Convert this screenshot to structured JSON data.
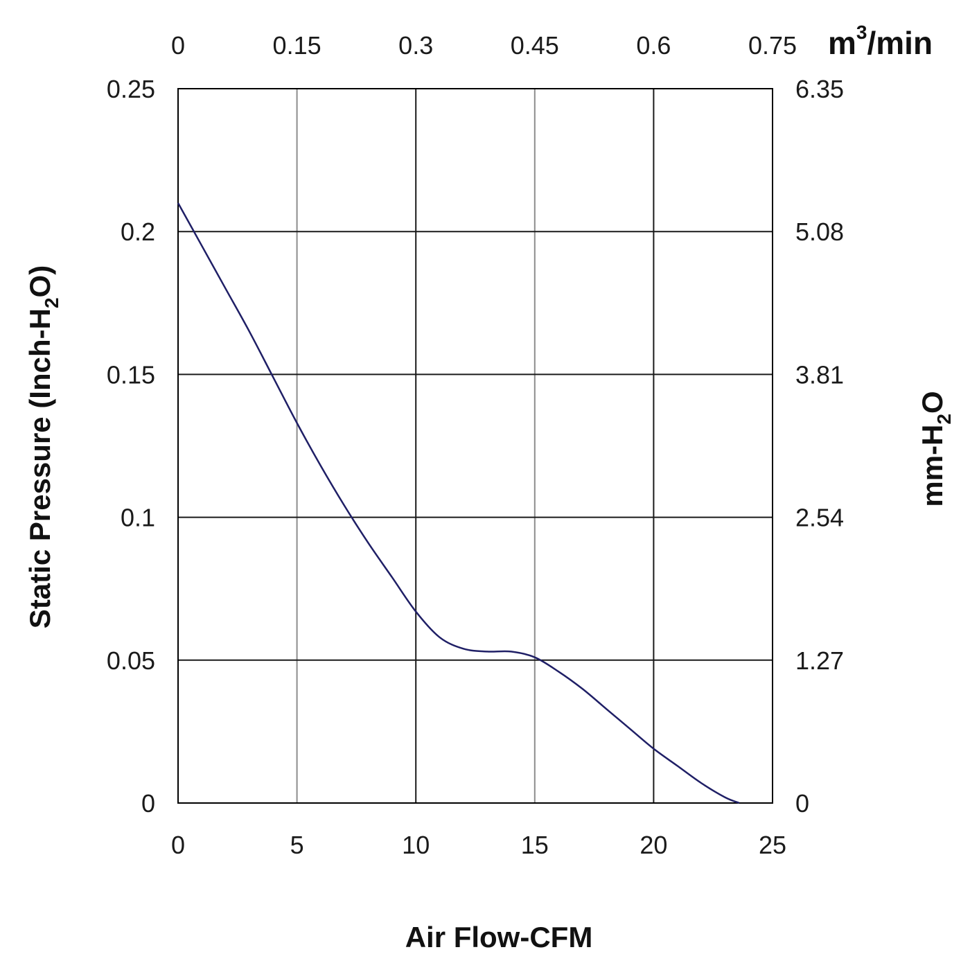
{
  "chart_data": {
    "type": "line",
    "title": "",
    "xlabel": "Air Flow-CFM",
    "ylabel": "Static Pressure (Inch-H2O)",
    "y2label": "mm-H2O",
    "x2label": "m3/min",
    "xlim": [
      0,
      25
    ],
    "ylim": [
      0,
      0.25
    ],
    "x_ticks": [
      "0",
      "5",
      "10",
      "15",
      "20",
      "25"
    ],
    "y_ticks": [
      "0",
      "0.05",
      "0.1",
      "0.15",
      "0.2",
      "0.25"
    ],
    "x2_ticks": [
      "0",
      "0.15",
      "0.3",
      "0.45",
      "0.6",
      "0.75"
    ],
    "y2_ticks": [
      "0",
      "1.27",
      "2.54",
      "3.81",
      "5.08",
      "6.35"
    ],
    "grid": true,
    "series": [
      {
        "name": "Static Pressure",
        "color": "#1f1f66",
        "x": [
          0,
          1,
          2,
          3,
          4,
          5,
          6,
          7,
          8,
          9,
          10,
          11,
          12,
          13,
          14,
          15,
          16,
          17,
          18,
          19,
          20,
          21,
          22,
          23,
          23.6
        ],
        "y": [
          0.21,
          0.195,
          0.18,
          0.165,
          0.149,
          0.133,
          0.118,
          0.104,
          0.091,
          0.079,
          0.067,
          0.058,
          0.054,
          0.053,
          0.053,
          0.051,
          0.046,
          0.04,
          0.033,
          0.026,
          0.019,
          0.013,
          0.007,
          0.002,
          0.0
        ]
      }
    ]
  }
}
